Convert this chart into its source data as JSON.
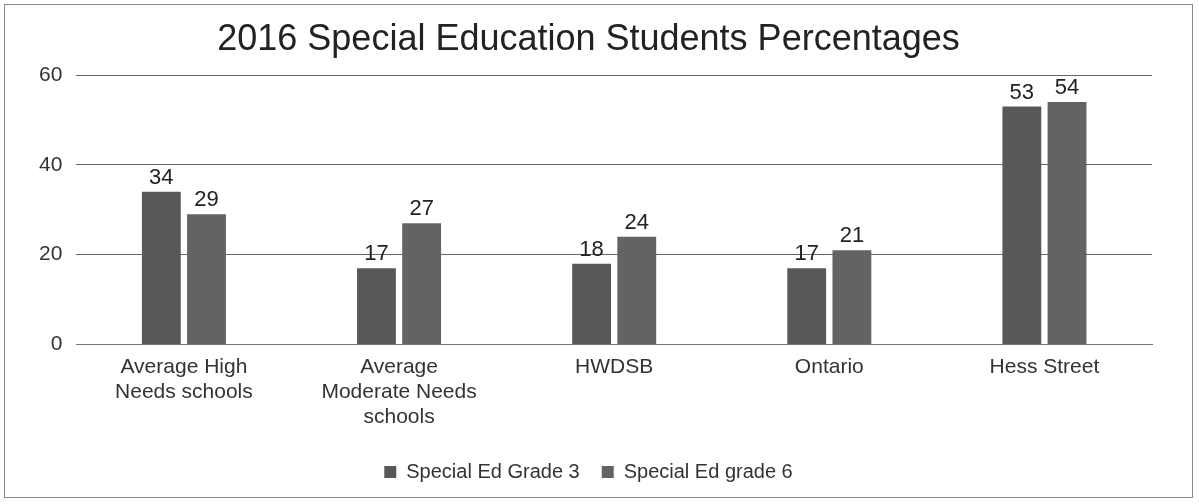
{
  "chart_data": {
    "type": "bar",
    "title": "2016 Special Education Students Percentages",
    "categories": [
      "Average High Needs schools",
      "Average Moderate Needs schools",
      "HWDSB",
      "Ontario",
      "Hess Street"
    ],
    "series": [
      {
        "name": "Special Ed Grade 3",
        "color": "#585858",
        "values": [
          34,
          17,
          18,
          17,
          53
        ]
      },
      {
        "name": "Special Ed grade 6",
        "color": "#636363",
        "values": [
          29,
          27,
          24,
          21,
          54
        ]
      }
    ],
    "ylim": [
      0,
      60
    ],
    "yticks": [
      0,
      20,
      40,
      60
    ],
    "grid": "y",
    "legend": "bottom",
    "data_labels": true
  }
}
